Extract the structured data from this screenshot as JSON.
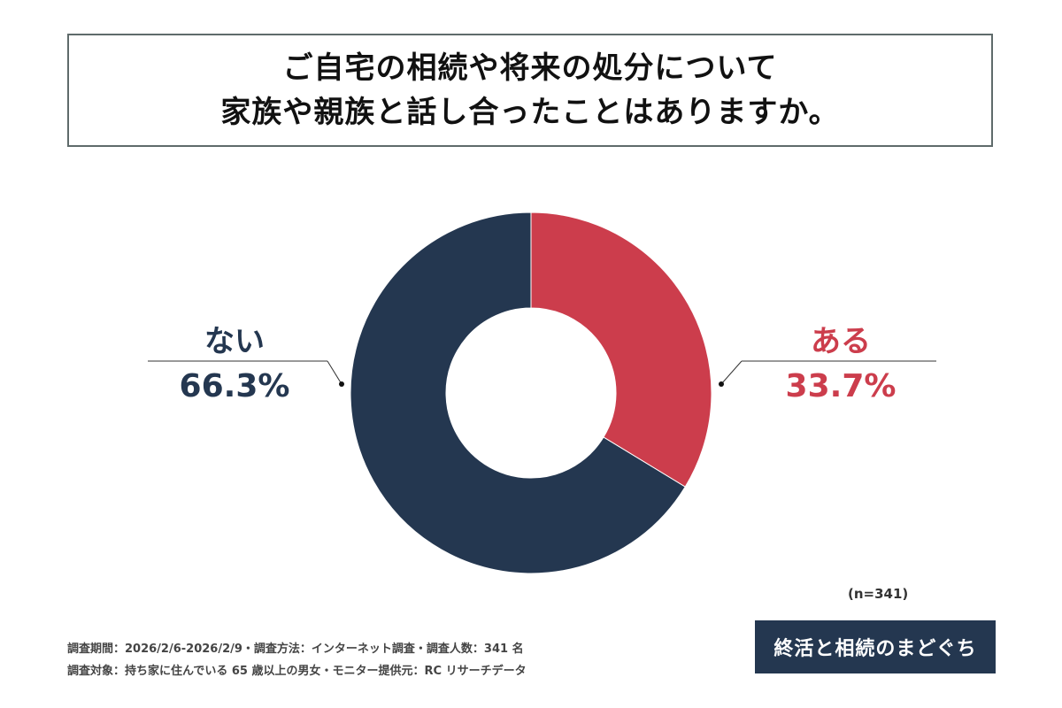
{
  "title_lines": [
    "ご自宅の相続や将来の処分について",
    "家族や親族と話し合ったことはありますか。"
  ],
  "chart_data": {
    "type": "pie",
    "variant": "donut",
    "categories": [
      "ある",
      "ない"
    ],
    "values": [
      33.7,
      66.3
    ],
    "value_labels": [
      "33.7%",
      "66.3%"
    ],
    "colors": [
      "#cc3d4c",
      "#243750"
    ],
    "start": "top, clockwise"
  },
  "sample": "(n=341)",
  "footer": [
    "調査期間：2026/2/6-2026/2/9・調査方法：インターネット調査・調査人数：341 名",
    "調査対象：持ち家に住んでいる 65 歳以上の男女・モニター提供元：RC リサーチデータ"
  ],
  "logo": "終活と相続のまどぐち"
}
